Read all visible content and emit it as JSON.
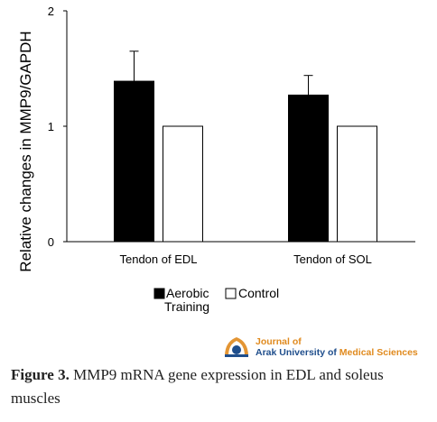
{
  "chart_data": {
    "type": "bar",
    "categories": [
      "Tendon of EDL",
      "Tendon of SOL"
    ],
    "series": [
      {
        "name": "Aerobic Training",
        "color": "#000000",
        "values": [
          1.39,
          1.27
        ],
        "error": [
          0.26,
          0.17
        ]
      },
      {
        "name": "Control",
        "color": "#ffffff",
        "values": [
          1.0,
          1.0
        ]
      }
    ],
    "ylabel": "Relative changes in MMP9/GAPDH",
    "ylim": [
      0,
      2
    ],
    "yticks": [
      0,
      1,
      2
    ],
    "grid": false,
    "legend_position": "bottom"
  },
  "legend": {
    "line1": "Aerobic",
    "line2": "Training",
    "control": "Control"
  },
  "journal": {
    "logo_icon": "university-seal-icon",
    "line1": "Journal of",
    "line2_part1": "Arak University of ",
    "line2_part2": "Medical Sciences"
  },
  "caption": {
    "label": "Figure 3.",
    "text": " MMP9 mRNA gene expression in EDL and soleus muscles"
  }
}
